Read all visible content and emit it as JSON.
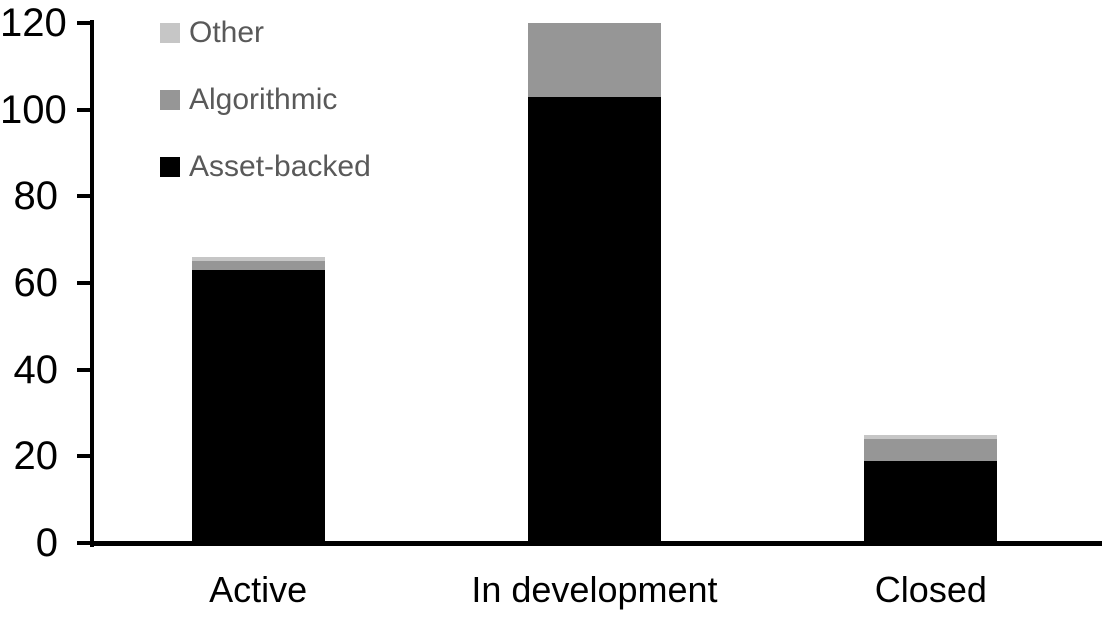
{
  "chart_data": {
    "type": "bar",
    "stacked": true,
    "title": "",
    "xlabel": "",
    "ylabel": "",
    "categories": [
      "Active",
      "In development",
      "Closed"
    ],
    "series": [
      {
        "name": "Asset-backed",
        "color": "#000000",
        "values": [
          63,
          103,
          19
        ]
      },
      {
        "name": "Algorithmic",
        "color": "#969696",
        "values": [
          2,
          17,
          5
        ]
      },
      {
        "name": "Other",
        "color": "#c6c6c6",
        "values": [
          1,
          0,
          1
        ]
      }
    ],
    "totals": [
      66,
      120,
      25
    ],
    "ylim": [
      0,
      120
    ],
    "y_ticks": [
      0,
      20,
      40,
      60,
      80,
      100,
      120
    ],
    "grid": false,
    "legend_position": "top-left",
    "legend_order": [
      "Other",
      "Algorithmic",
      "Asset-backed"
    ],
    "axis_color": "#000000",
    "label_color": "#000000",
    "legend_text_color": "#595959",
    "background": "#ffffff"
  }
}
